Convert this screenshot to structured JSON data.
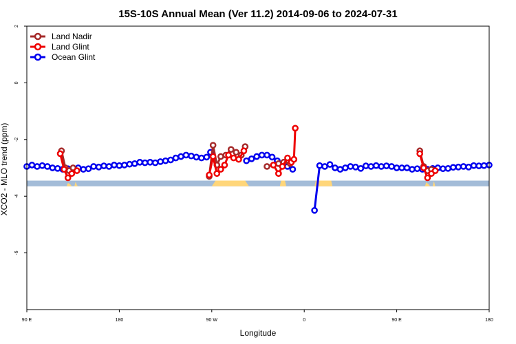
{
  "chart_data": {
    "type": "line",
    "title": "15S-10S Annual Mean (Ver 11.2)   2014-09-06 to 2024-07-31",
    "xlabel": "Longitude",
    "ylabel": "XCO2 - MLO trend (ppm)",
    "xlim": [
      -180,
      180
    ],
    "ylim": [
      -8,
      2
    ],
    "x_ticks": [
      {
        "value": -180,
        "label": "90 E"
      },
      {
        "value": -108,
        "label": "180"
      },
      {
        "value": -36,
        "label": "90 W"
      },
      {
        "value": 36,
        "label": "0"
      },
      {
        "value": 108,
        "label": "90 E"
      },
      {
        "value": 180,
        "label": "180"
      }
    ],
    "y_ticks": [
      {
        "value": 2,
        "label": "2"
      },
      {
        "value": 0,
        "label": "0"
      },
      {
        "value": -2,
        "label": "-2"
      },
      {
        "value": -4,
        "label": "-4"
      },
      {
        "value": -6,
        "label": "-6"
      }
    ],
    "legend_position": "top-left",
    "land_band": {
      "y_top": -3.45,
      "y_bottom": -3.65,
      "ocean_color": "#a3bcd8",
      "land_color": "#ffd67a"
    },
    "series": [
      {
        "name": "Land Nadir",
        "color": "#a52a2a",
        "segments": [
          [
            [
              -153,
              -2.4
            ],
            [
              -150,
              -3.0
            ],
            [
              -147,
              -3.1
            ],
            [
              -144,
              -3.0
            ]
          ],
          [
            [
              -38,
              -3.3
            ],
            [
              -35,
              -2.2
            ],
            [
              -32,
              -2.9
            ],
            [
              -29,
              -2.6
            ],
            [
              -25,
              -2.55
            ],
            [
              -21,
              -2.35
            ],
            [
              -17,
              -2.45
            ],
            [
              -13,
              -2.55
            ],
            [
              -10,
              -2.25
            ]
          ],
          [
            [
              7,
              -2.95
            ],
            [
              12,
              -2.9
            ],
            [
              16,
              -2.85
            ],
            [
              20,
              -2.8
            ],
            [
              25,
              -2.85
            ]
          ],
          [
            [
              126,
              -2.4
            ],
            [
              129,
              -2.95
            ],
            [
              132,
              -3.1
            ],
            [
              135,
              -3.05
            ]
          ]
        ]
      },
      {
        "name": "Land Glint",
        "color": "#ee0000",
        "segments": [
          [
            [
              -154,
              -2.5
            ],
            [
              -151,
              -3.05
            ],
            [
              -148,
              -3.35
            ],
            [
              -145,
              -3.2
            ],
            [
              -141,
              -3.1
            ]
          ],
          [
            [
              -38,
              -3.25
            ],
            [
              -35,
              -2.6
            ],
            [
              -32,
              -3.2
            ],
            [
              -29,
              -3.05
            ],
            [
              -26,
              -2.9
            ],
            [
              -23,
              -2.55
            ],
            [
              -19,
              -2.65
            ],
            [
              -15,
              -2.7
            ],
            [
              -11,
              -2.4
            ]
          ],
          [
            [
              12,
              -2.9
            ],
            [
              16,
              -3.2
            ],
            [
              19,
              -2.95
            ],
            [
              23,
              -2.65
            ],
            [
              26,
              -2.8
            ],
            [
              28,
              -2.7
            ],
            [
              29,
              -1.6
            ]
          ],
          [
            [
              126,
              -2.5
            ],
            [
              129,
              -3.0
            ],
            [
              132,
              -3.35
            ],
            [
              135,
              -3.2
            ],
            [
              138,
              -3.1
            ]
          ]
        ]
      },
      {
        "name": "Ocean Glint",
        "color": "#0000ee",
        "segments": [
          [
            [
              -180,
              -2.95
            ],
            [
              -176,
              -2.9
            ],
            [
              -172,
              -2.95
            ],
            [
              -168,
              -2.92
            ],
            [
              -164,
              -2.95
            ],
            [
              -160,
              -3.0
            ],
            [
              -156,
              -3.02
            ],
            [
              -152,
              -3.05
            ],
            [
              -148,
              -3.03
            ],
            [
              -144,
              -3.05
            ],
            [
              -140,
              -3.0
            ],
            [
              -136,
              -3.05
            ],
            [
              -132,
              -3.03
            ],
            [
              -128,
              -2.95
            ],
            [
              -124,
              -2.97
            ],
            [
              -120,
              -2.93
            ],
            [
              -116,
              -2.95
            ],
            [
              -112,
              -2.9
            ],
            [
              -108,
              -2.92
            ],
            [
              -104,
              -2.9
            ],
            [
              -100,
              -2.87
            ],
            [
              -96,
              -2.85
            ],
            [
              -92,
              -2.8
            ],
            [
              -88,
              -2.82
            ],
            [
              -84,
              -2.8
            ],
            [
              -80,
              -2.82
            ],
            [
              -76,
              -2.78
            ],
            [
              -72,
              -2.75
            ],
            [
              -68,
              -2.72
            ],
            [
              -64,
              -2.65
            ],
            [
              -60,
              -2.6
            ],
            [
              -56,
              -2.55
            ],
            [
              -52,
              -2.58
            ],
            [
              -48,
              -2.62
            ],
            [
              -44,
              -2.65
            ],
            [
              -40,
              -2.62
            ],
            [
              -37,
              -2.45
            ]
          ],
          [
            [
              -9,
              -2.75
            ],
            [
              -5,
              -2.68
            ],
            [
              -1,
              -2.6
            ],
            [
              3,
              -2.55
            ],
            [
              7,
              -2.55
            ],
            [
              11,
              -2.62
            ],
            [
              15,
              -2.75
            ],
            [
              19,
              -2.85
            ],
            [
              23,
              -2.95
            ],
            [
              27,
              -3.05
            ]
          ],
          [
            [
              44,
              -4.5
            ],
            [
              48,
              -2.92
            ],
            [
              52,
              -2.95
            ],
            [
              56,
              -2.88
            ],
            [
              60,
              -3.0
            ],
            [
              64,
              -3.05
            ],
            [
              68,
              -3.0
            ],
            [
              72,
              -2.95
            ],
            [
              76,
              -2.97
            ],
            [
              80,
              -3.02
            ],
            [
              84,
              -2.93
            ],
            [
              88,
              -2.95
            ],
            [
              92,
              -2.92
            ],
            [
              96,
              -2.95
            ],
            [
              100,
              -2.93
            ],
            [
              104,
              -2.95
            ],
            [
              108,
              -3.0
            ],
            [
              112,
              -3.0
            ],
            [
              116,
              -3.0
            ],
            [
              120,
              -3.05
            ],
            [
              124,
              -3.03
            ],
            [
              128,
              -3.05
            ],
            [
              132,
              -3.05
            ],
            [
              136,
              -3.02
            ],
            [
              140,
              -3.0
            ],
            [
              144,
              -3.03
            ],
            [
              148,
              -3.02
            ],
            [
              152,
              -2.98
            ],
            [
              156,
              -2.97
            ],
            [
              160,
              -2.95
            ],
            [
              164,
              -2.97
            ],
            [
              168,
              -2.92
            ],
            [
              172,
              -2.93
            ],
            [
              176,
              -2.92
            ],
            [
              180,
              -2.9
            ]
          ]
        ]
      }
    ]
  }
}
